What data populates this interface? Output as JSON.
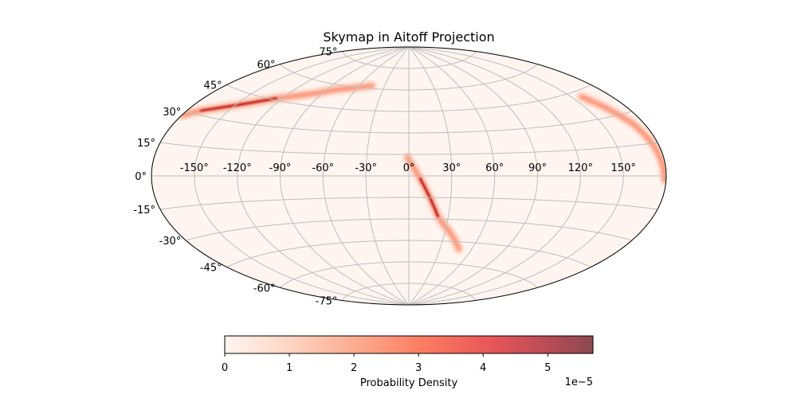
{
  "chart_data": {
    "type": "heatmap",
    "projection": "aitoff",
    "title": "Skymap in Aitoff Projection",
    "grid": true,
    "longitude_ticks": [
      "-150°",
      "-120°",
      "-90°",
      "-60°",
      "-30°",
      "0°",
      "30°",
      "60°",
      "90°",
      "120°",
      "150°"
    ],
    "latitude_ticks": [
      "-75°",
      "-60°",
      "-45°",
      "-30°",
      "-15°",
      "0°",
      "15°",
      "30°",
      "45°",
      "60°",
      "75°"
    ],
    "colormap": "Reds",
    "colorbar": {
      "label": "Probability Density",
      "ticks": [
        "0",
        "1",
        "2",
        "3",
        "4",
        "5"
      ],
      "offset_text": "1e−5",
      "range": [
        0,
        5.7e-05
      ],
      "placement": "bottom"
    },
    "probability_arcs": [
      {
        "points": [
          [
            -1,
            13
          ],
          [
            8,
            -2
          ],
          [
            15,
            -15
          ],
          [
            22,
            -28
          ],
          [
            28,
            -34
          ],
          [
            38,
            -42
          ],
          [
            48,
            -50
          ]
        ],
        "peak": [
          15,
          -15
        ],
        "peak_value": 5.6e-05
      },
      {
        "points": [
          [
            -180,
            28
          ],
          [
            -170,
            32
          ],
          [
            -150,
            38
          ],
          [
            -125,
            46
          ],
          [
            -100,
            52
          ],
          [
            -80,
            57
          ],
          [
            -60,
            60
          ],
          [
            -45,
            62
          ]
        ],
        "peak": [
          -150,
          38
        ],
        "peak_value": 5.4e-05
      },
      {
        "points": [
          [
            158,
            42
          ],
          [
            165,
            34
          ],
          [
            172,
            25
          ],
          [
            176,
            15
          ],
          [
            178,
            5
          ],
          [
            179,
            -2
          ]
        ],
        "peak": [
          166,
          32
        ],
        "peak_value": 4e-05
      }
    ]
  }
}
